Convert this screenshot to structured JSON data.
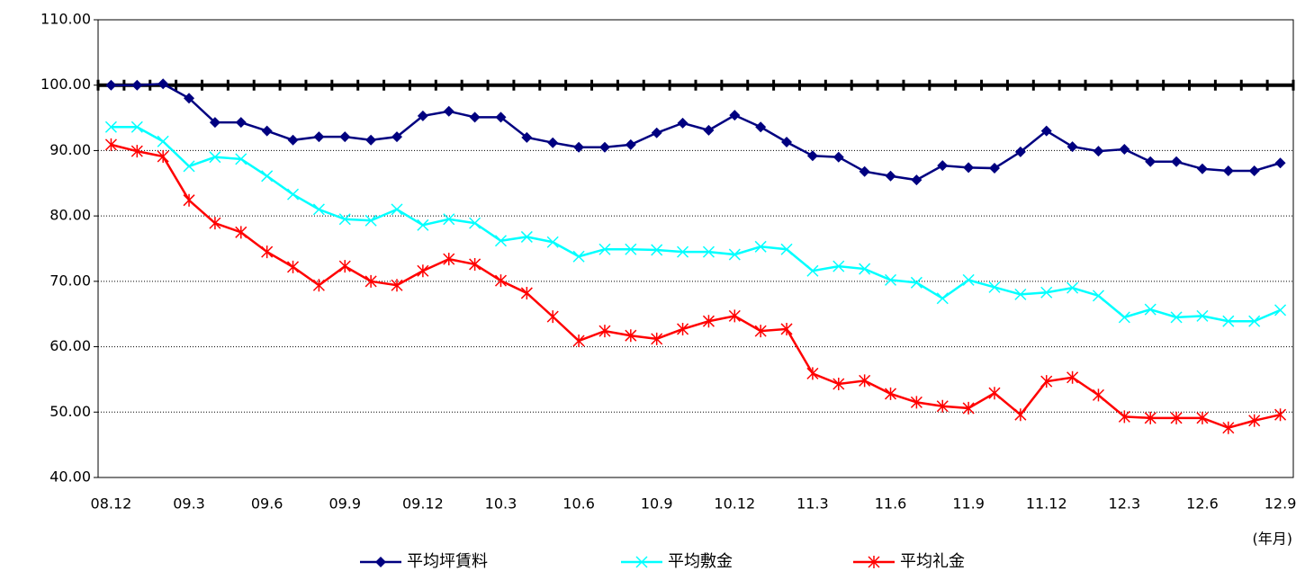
{
  "chart_data": {
    "type": "line",
    "categories": [
      "08.12",
      null,
      null,
      "09.3",
      null,
      null,
      "09.6",
      null,
      null,
      "09.9",
      null,
      null,
      "09.12",
      null,
      null,
      "10.3",
      null,
      null,
      "10.6",
      null,
      null,
      "10.9",
      null,
      null,
      "10.12",
      null,
      null,
      "11.3",
      null,
      null,
      "11.6",
      null,
      null,
      "11.9",
      null,
      null,
      "11.12",
      null,
      null,
      "12.3",
      null,
      null,
      "12.6",
      null,
      null,
      "12.9"
    ],
    "x_unit": "(年月)",
    "series": [
      {
        "name": "平均坪賃料",
        "color": "#000080",
        "marker": "diamond",
        "values": [
          100.0,
          100.0,
          100.2,
          98.0,
          94.3,
          94.3,
          93.0,
          91.6,
          92.1,
          92.1,
          91.6,
          92.1,
          95.3,
          96.0,
          95.1,
          95.1,
          92.0,
          91.2,
          90.5,
          90.5,
          90.9,
          92.7,
          94.2,
          93.1,
          95.4,
          93.6,
          91.3,
          89.2,
          89.0,
          86.8,
          86.1,
          85.5,
          87.7,
          87.4,
          87.3,
          89.8,
          93.0,
          90.6,
          89.9,
          90.2,
          88.3,
          88.3,
          87.2,
          86.9,
          86.9,
          88.1
        ]
      },
      {
        "name": "平均敷金",
        "color": "#00ffff",
        "marker": "x",
        "values": [
          93.6,
          93.6,
          91.4,
          87.6,
          89.0,
          88.7,
          86.1,
          83.3,
          81.0,
          79.5,
          79.3,
          81.0,
          78.6,
          79.5,
          78.9,
          76.2,
          76.8,
          76.0,
          73.8,
          74.9,
          74.9,
          74.8,
          74.5,
          74.5,
          74.1,
          75.3,
          74.9,
          71.6,
          72.3,
          71.9,
          70.2,
          69.8,
          67.4,
          70.2,
          69.1,
          68.0,
          68.3,
          69.0,
          67.8,
          64.5,
          65.7,
          64.5,
          64.7,
          63.9,
          63.9,
          65.6
        ]
      },
      {
        "name": "平均礼金",
        "color": "#ff0000",
        "marker": "asterisk",
        "values": [
          90.9,
          89.9,
          89.1,
          82.4,
          78.9,
          77.5,
          74.5,
          72.2,
          69.4,
          72.3,
          70.0,
          69.4,
          71.6,
          73.4,
          72.6,
          70.1,
          68.2,
          64.6,
          60.9,
          62.4,
          61.7,
          61.2,
          62.7,
          63.9,
          64.7,
          62.4,
          62.7,
          55.9,
          54.3,
          54.8,
          52.8,
          51.5,
          50.9,
          50.6,
          52.9,
          49.6,
          54.7,
          55.3,
          52.6,
          49.3,
          49.1,
          49.1,
          49.1,
          47.6,
          48.7,
          49.6
        ]
      }
    ],
    "ylim": [
      40,
      110
    ],
    "yticks": [
      {
        "value": 40,
        "label": "40.00"
      },
      {
        "value": 50,
        "label": "50.00"
      },
      {
        "value": 60,
        "label": "60.00"
      },
      {
        "value": 70,
        "label": "70.00"
      },
      {
        "value": 80,
        "label": "80.00"
      },
      {
        "value": 90,
        "label": "90.00"
      },
      {
        "value": 100,
        "label": "100.00"
      },
      {
        "value": 110,
        "label": "110.00"
      }
    ],
    "reference_line": 100,
    "grid": true,
    "legend": "bottom"
  }
}
